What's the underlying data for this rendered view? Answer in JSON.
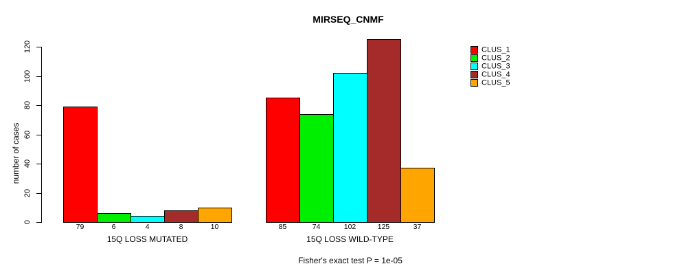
{
  "title": "MIRSEQ_CNMF",
  "ylabel": "number of cases",
  "annotation": "Fisher's exact test P = 1e-05",
  "legend": {
    "entries": [
      {
        "label": "CLUS_1",
        "color": "#FF0000"
      },
      {
        "label": "CLUS_2",
        "color": "#00EE00"
      },
      {
        "label": "CLUS_3",
        "color": "#00FFFF"
      },
      {
        "label": "CLUS_4",
        "color": "#A52A2A"
      },
      {
        "label": "CLUS_5",
        "color": "#FFA500"
      }
    ]
  },
  "chart_data": {
    "type": "bar",
    "title": "MIRSEQ_CNMF",
    "xlabel": "",
    "ylabel": "number of cases",
    "categories": [
      "15Q LOSS MUTATED",
      "15Q LOSS WILD-TYPE"
    ],
    "series": [
      {
        "name": "CLUS_1",
        "color": "#FF0000",
        "values": [
          79,
          85
        ]
      },
      {
        "name": "CLUS_2",
        "color": "#00EE00",
        "values": [
          6,
          74
        ]
      },
      {
        "name": "CLUS_3",
        "color": "#00FFFF",
        "values": [
          4,
          102
        ]
      },
      {
        "name": "CLUS_4",
        "color": "#A52A2A",
        "values": [
          8,
          125
        ]
      },
      {
        "name": "CLUS_5",
        "color": "#FFA500",
        "values": [
          10,
          37
        ]
      }
    ],
    "bar_value_labels": {
      "15Q LOSS MUTATED": [
        79,
        6,
        4,
        8,
        10
      ],
      "15Q LOSS WILD-TYPE": [
        85,
        74,
        102,
        125,
        37
      ]
    },
    "yticks": [
      0,
      20,
      40,
      60,
      80,
      100,
      120
    ],
    "ylim": [
      0,
      128
    ],
    "grid": false,
    "legend_position": "right-outside",
    "annotation": "Fisher's exact test P = 1e-05"
  }
}
